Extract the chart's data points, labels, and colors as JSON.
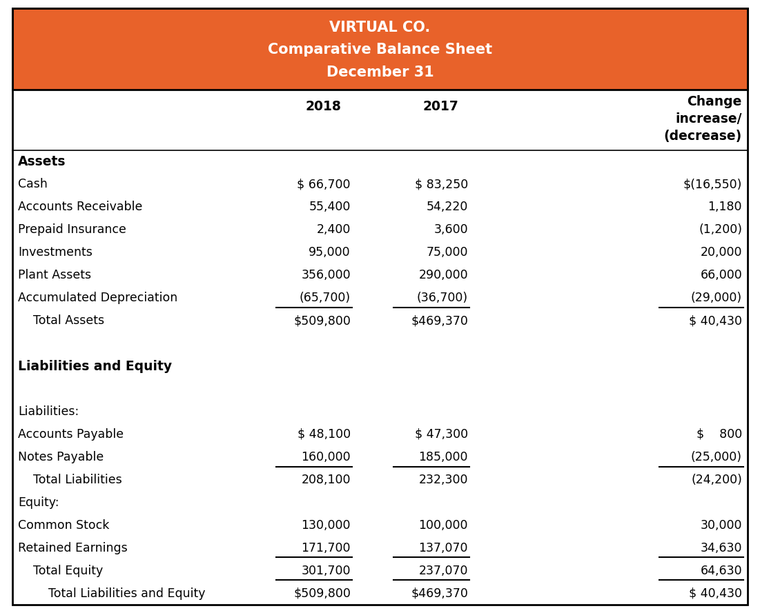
{
  "title_line1": "VIRTUAL CO.",
  "title_line2": "Comparative Balance Sheet",
  "title_line3": "December 31",
  "header_bg": "#E8622A",
  "header_text_color": "#FFFFFF",
  "col_headers": [
    "2018",
    "2017",
    "Change\nincrease/\n(decrease)"
  ],
  "rows": [
    {
      "label": "Assets",
      "bold": true,
      "indent": 0,
      "val2018": "",
      "val2017": "",
      "valchange": "",
      "ul18": false,
      "ul17": false,
      "ulc": false,
      "is_total": false
    },
    {
      "label": "Cash",
      "bold": false,
      "indent": 0,
      "val2018": "$ 66,700",
      "val2017": "$ 83,250",
      "valchange": "$(16,550)",
      "ul18": false,
      "ul17": false,
      "ulc": false,
      "is_total": false
    },
    {
      "label": "Accounts Receivable",
      "bold": false,
      "indent": 0,
      "val2018": "55,400",
      "val2017": "54,220",
      "valchange": "1,180",
      "ul18": false,
      "ul17": false,
      "ulc": false,
      "is_total": false
    },
    {
      "label": "Prepaid Insurance",
      "bold": false,
      "indent": 0,
      "val2018": "2,400",
      "val2017": "3,600",
      "valchange": "(1,200)",
      "ul18": false,
      "ul17": false,
      "ulc": false,
      "is_total": false
    },
    {
      "label": "Investments",
      "bold": false,
      "indent": 0,
      "val2018": "95,000",
      "val2017": "75,000",
      "valchange": "20,000",
      "ul18": false,
      "ul17": false,
      "ulc": false,
      "is_total": false
    },
    {
      "label": "Plant Assets",
      "bold": false,
      "indent": 0,
      "val2018": "356,000",
      "val2017": "290,000",
      "valchange": "66,000",
      "ul18": false,
      "ul17": false,
      "ulc": false,
      "is_total": false
    },
    {
      "label": "Accumulated Depreciation",
      "bold": false,
      "indent": 0,
      "val2018": "(65,700)",
      "val2017": "(36,700)",
      "valchange": "(29,000)",
      "ul18": true,
      "ul17": true,
      "ulc": true,
      "is_total": false
    },
    {
      "label": "Total Assets",
      "bold": false,
      "indent": 1,
      "val2018": "$509,800",
      "val2017": "$469,370",
      "valchange": "$ 40,430",
      "ul18": false,
      "ul17": false,
      "ulc": false,
      "is_total": false
    },
    {
      "label": "",
      "bold": false,
      "indent": 0,
      "val2018": "",
      "val2017": "",
      "valchange": "",
      "ul18": false,
      "ul17": false,
      "ulc": false,
      "is_total": false
    },
    {
      "label": "Liabilities and Equity",
      "bold": true,
      "indent": 0,
      "val2018": "",
      "val2017": "",
      "valchange": "",
      "ul18": false,
      "ul17": false,
      "ulc": false,
      "is_total": false
    },
    {
      "label": "",
      "bold": false,
      "indent": 0,
      "val2018": "",
      "val2017": "",
      "valchange": "",
      "ul18": false,
      "ul17": false,
      "ulc": false,
      "is_total": false
    },
    {
      "label": "Liabilities:",
      "bold": false,
      "indent": 0,
      "val2018": "",
      "val2017": "",
      "valchange": "",
      "ul18": false,
      "ul17": false,
      "ulc": false,
      "is_total": false
    },
    {
      "label": "Accounts Payable",
      "bold": false,
      "indent": 0,
      "val2018": "$ 48,100",
      "val2017": "$ 47,300",
      "valchange": "$    800",
      "ul18": false,
      "ul17": false,
      "ulc": false,
      "is_total": false
    },
    {
      "label": "Notes Payable",
      "bold": false,
      "indent": 0,
      "val2018": "160,000",
      "val2017": "185,000",
      "valchange": "(25,000)",
      "ul18": true,
      "ul17": true,
      "ulc": true,
      "is_total": false
    },
    {
      "label": "Total Liabilities",
      "bold": false,
      "indent": 1,
      "val2018": "208,100",
      "val2017": "232,300",
      "valchange": "(24,200)",
      "ul18": false,
      "ul17": false,
      "ulc": false,
      "is_total": false
    },
    {
      "label": "Equity:",
      "bold": false,
      "indent": 0,
      "val2018": "",
      "val2017": "",
      "valchange": "",
      "ul18": false,
      "ul17": false,
      "ulc": false,
      "is_total": false
    },
    {
      "label": "Common Stock",
      "bold": false,
      "indent": 0,
      "val2018": "130,000",
      "val2017": "100,000",
      "valchange": "30,000",
      "ul18": false,
      "ul17": false,
      "ulc": false,
      "is_total": false
    },
    {
      "label": "Retained Earnings",
      "bold": false,
      "indent": 0,
      "val2018": "171,700",
      "val2017": "137,070",
      "valchange": "34,630",
      "ul18": true,
      "ul17": true,
      "ulc": true,
      "is_total": false
    },
    {
      "label": "Total Equity",
      "bold": false,
      "indent": 1,
      "val2018": "301,700",
      "val2017": "237,070",
      "valchange": "64,630",
      "ul18": true,
      "ul17": true,
      "ulc": true,
      "is_total": false
    },
    {
      "label": "Total Liabilities and Equity",
      "bold": false,
      "indent": 2,
      "val2018": "$509,800",
      "val2017": "$469,370",
      "valchange": "$ 40,430",
      "ul18": false,
      "ul17": false,
      "ulc": false,
      "is_total": false
    }
  ],
  "text_color": "#000000",
  "font_size": 12.5,
  "header_font_size": 15
}
